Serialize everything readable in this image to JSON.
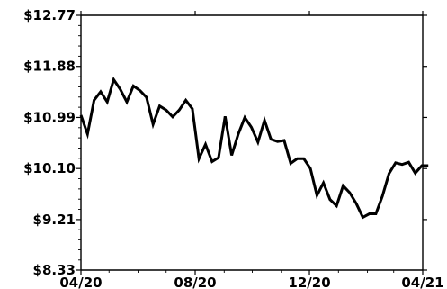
{
  "chart_data": {
    "type": "line",
    "title": "",
    "xlabel": "",
    "ylabel": "",
    "ylim": [
      8.33,
      12.77
    ],
    "y_ticks": [
      "$8.33",
      "$9.21",
      "$10.10",
      "$10.99",
      "$11.88",
      "$12.77"
    ],
    "y_tick_values": [
      8.33,
      9.21,
      10.1,
      10.99,
      11.88,
      12.77
    ],
    "x_ticks": [
      "04/20",
      "08/20",
      "12/20",
      "04/21"
    ],
    "x_tick_values": [
      "2020-04",
      "2020-08",
      "2020-12",
      "2021-04"
    ],
    "grid": "none (frame with minor ticks)",
    "colors": {
      "line": "#000000",
      "axis": "#000000",
      "background": "#ffffff"
    },
    "series": [
      {
        "x": [
          "2020-04-01",
          "2020-04-08",
          "2020-04-15",
          "2020-04-22",
          "2020-04-29",
          "2020-05-06",
          "2020-05-13",
          "2020-05-20",
          "2020-05-27",
          "2020-06-03",
          "2020-06-10",
          "2020-06-17",
          "2020-06-24",
          "2020-07-01",
          "2020-07-08",
          "2020-07-15",
          "2020-07-22",
          "2020-07-29",
          "2020-08-05",
          "2020-08-12",
          "2020-08-19",
          "2020-08-26",
          "2020-09-02",
          "2020-09-09",
          "2020-09-16",
          "2020-09-23",
          "2020-09-30",
          "2020-10-07",
          "2020-10-14",
          "2020-10-21",
          "2020-10-28",
          "2020-11-04",
          "2020-11-11",
          "2020-11-18",
          "2020-11-25",
          "2020-12-02",
          "2020-12-09",
          "2020-12-16",
          "2020-12-23",
          "2020-12-30",
          "2021-01-06",
          "2021-01-13",
          "2021-01-20",
          "2021-01-27",
          "2021-02-03",
          "2021-02-10",
          "2021-02-17",
          "2021-02-24",
          "2021-03-03",
          "2021-03-10",
          "2021-03-17",
          "2021-03-24",
          "2021-03-31",
          "2021-04-07"
        ],
        "y": [
          11.03,
          10.7,
          11.29,
          11.44,
          11.26,
          11.65,
          11.48,
          11.26,
          11.54,
          11.46,
          11.34,
          10.87,
          11.19,
          11.12,
          11.0,
          11.12,
          11.29,
          11.14,
          10.27,
          10.52,
          10.22,
          10.29,
          11.01,
          10.33,
          10.7,
          10.99,
          10.82,
          10.56,
          10.94,
          10.61,
          10.57,
          10.59,
          10.19,
          10.27,
          10.27,
          10.1,
          9.63,
          9.85,
          9.56,
          9.45,
          9.8,
          9.68,
          9.49,
          9.25,
          9.31,
          9.31,
          9.62,
          10.01,
          10.2,
          10.17,
          10.21,
          10.02,
          10.15,
          10.15
        ]
      }
    ]
  }
}
